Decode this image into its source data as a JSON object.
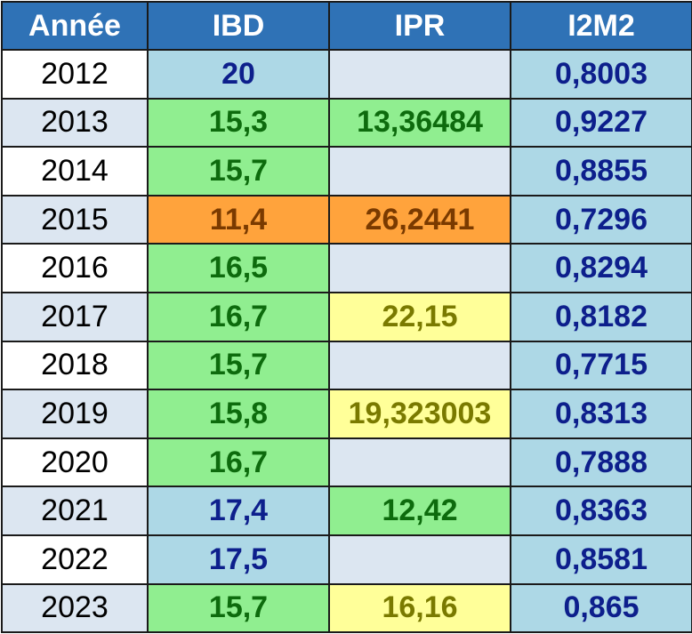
{
  "colors": {
    "header_bg": "#2f72b6",
    "header_text": "#ffffff",
    "blue": "#add8e6",
    "green": "#90ee90",
    "orange": "#ffa33c",
    "yellow": "#ffff99",
    "empty": "#dce6f1"
  },
  "table": {
    "headers": {
      "year": "Année",
      "ibd": "IBD",
      "ipr": "IPR",
      "i2m2": "I2M2"
    },
    "rows": [
      {
        "year": "2012",
        "ibd": "20",
        "ibd_class": "blue",
        "ipr": "",
        "ipr_class": "empty",
        "i2m2": "0,8003",
        "i2m2_class": "blue"
      },
      {
        "year": "2013",
        "ibd": "15,3",
        "ibd_class": "green",
        "ipr": "13,36484",
        "ipr_class": "green",
        "i2m2": "0,9227",
        "i2m2_class": "blue"
      },
      {
        "year": "2014",
        "ibd": "15,7",
        "ibd_class": "green",
        "ipr": "",
        "ipr_class": "empty",
        "i2m2": "0,8855",
        "i2m2_class": "blue"
      },
      {
        "year": "2015",
        "ibd": "11,4",
        "ibd_class": "orange",
        "ipr": "26,2441",
        "ipr_class": "orange",
        "i2m2": "0,7296",
        "i2m2_class": "blue"
      },
      {
        "year": "2016",
        "ibd": "16,5",
        "ibd_class": "green",
        "ipr": "",
        "ipr_class": "empty",
        "i2m2": "0,8294",
        "i2m2_class": "blue"
      },
      {
        "year": "2017",
        "ibd": "16,7",
        "ibd_class": "green",
        "ipr": "22,15",
        "ipr_class": "yellow",
        "i2m2": "0,8182",
        "i2m2_class": "blue"
      },
      {
        "year": "2018",
        "ibd": "15,7",
        "ibd_class": "green",
        "ipr": "",
        "ipr_class": "empty",
        "i2m2": "0,7715",
        "i2m2_class": "blue"
      },
      {
        "year": "2019",
        "ibd": "15,8",
        "ibd_class": "green",
        "ipr": "19,323003",
        "ipr_class": "yellow",
        "i2m2": "0,8313",
        "i2m2_class": "blue"
      },
      {
        "year": "2020",
        "ibd": "16,7",
        "ibd_class": "green",
        "ipr": "",
        "ipr_class": "empty",
        "i2m2": "0,7888",
        "i2m2_class": "blue"
      },
      {
        "year": "2021",
        "ibd": "17,4",
        "ibd_class": "blue",
        "ipr": "12,42",
        "ipr_class": "green",
        "i2m2": "0,8363",
        "i2m2_class": "blue"
      },
      {
        "year": "2022",
        "ibd": "17,5",
        "ibd_class": "blue",
        "ipr": "",
        "ipr_class": "empty",
        "i2m2": "0,8581",
        "i2m2_class": "blue"
      },
      {
        "year": "2023",
        "ibd": "15,7",
        "ibd_class": "green",
        "ipr": "16,16",
        "ipr_class": "yellow",
        "i2m2": "0,865",
        "i2m2_class": "blue"
      }
    ]
  }
}
